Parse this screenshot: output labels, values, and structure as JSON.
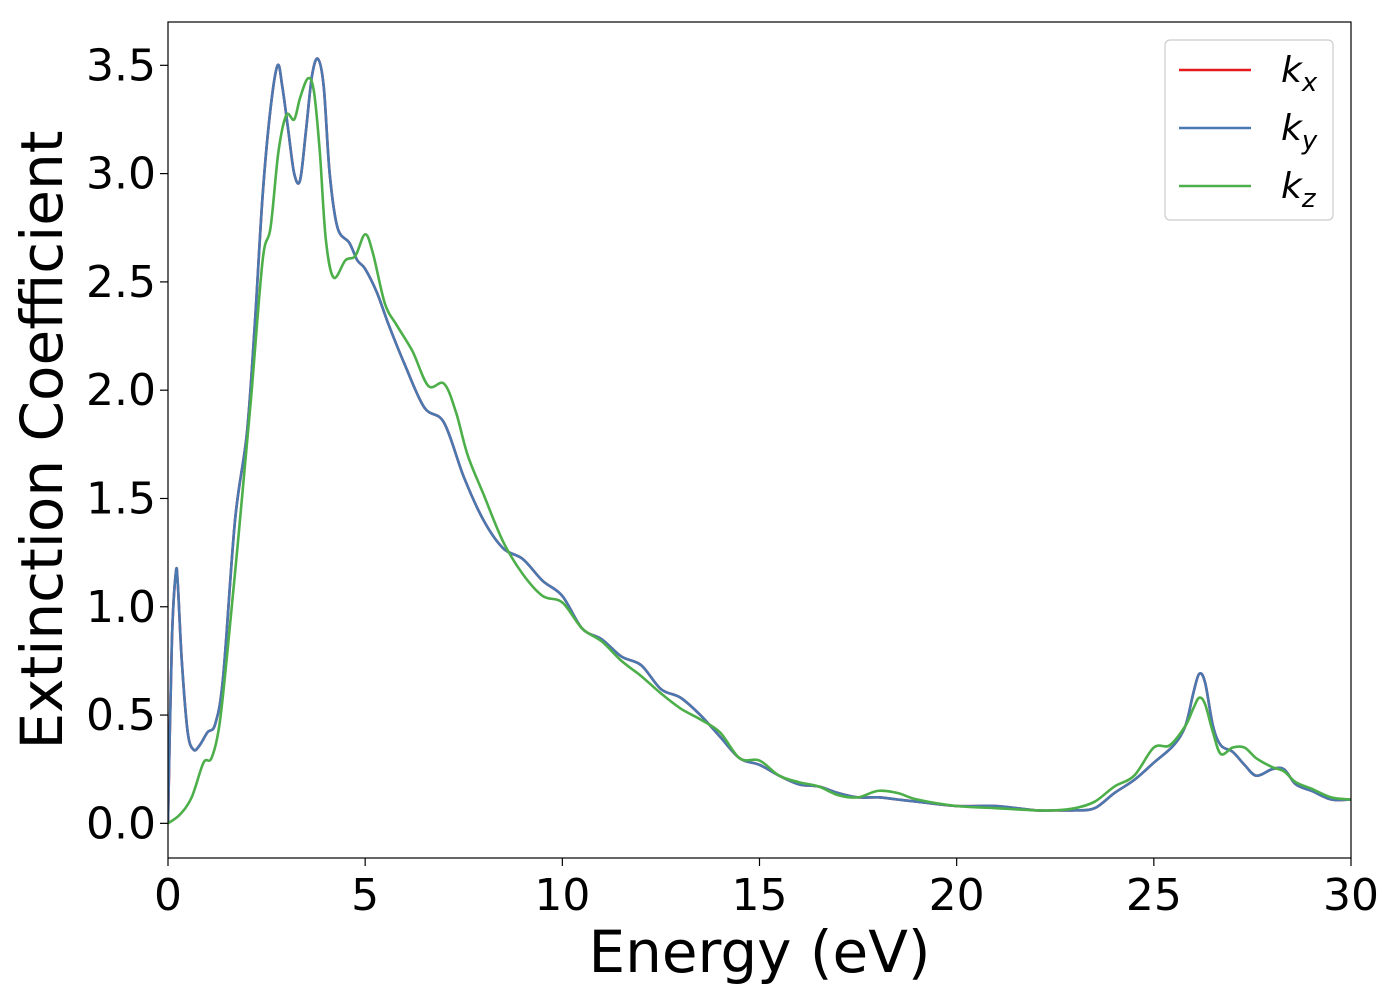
{
  "chart_data": {
    "type": "line",
    "title": "",
    "xlabel": "Energy (eV)",
    "ylabel": "Extinction Coefficient",
    "xlim": [
      0,
      30
    ],
    "ylim": [
      -0.16,
      3.7
    ],
    "xticks": [
      0,
      5,
      10,
      15,
      20,
      25,
      30
    ],
    "xtick_labels": [
      "0",
      "5",
      "10",
      "15",
      "20",
      "25",
      "30"
    ],
    "yticks": [
      0.0,
      0.5,
      1.0,
      1.5,
      2.0,
      2.5,
      3.0,
      3.5
    ],
    "ytick_labels": [
      "0.0",
      "0.5",
      "1.0",
      "1.5",
      "2.0",
      "2.5",
      "3.0",
      "3.5"
    ],
    "grid": false,
    "legend_position": "top-right",
    "series": [
      {
        "name": "k",
        "subscript": "x",
        "color": "#e41a1c",
        "x": [
          0,
          0.1,
          0.2,
          0.25,
          0.35,
          0.5,
          0.65,
          0.8,
          1.0,
          1.2,
          1.4,
          1.7,
          2.0,
          2.2,
          2.4,
          2.6,
          2.78,
          2.9,
          3.05,
          3.2,
          3.35,
          3.5,
          3.65,
          3.8,
          3.95,
          4.1,
          4.3,
          4.6,
          4.8,
          5.0,
          5.3,
          5.6,
          6.0,
          6.5,
          7.0,
          7.5,
          8.0,
          8.5,
          9.0,
          9.5,
          10.0,
          10.5,
          11.0,
          11.5,
          12.0,
          12.5,
          13.0,
          13.5,
          14.0,
          14.5,
          15.0,
          15.5,
          16.0,
          16.5,
          17.0,
          17.5,
          18.0,
          18.5,
          19.0,
          20.0,
          21.0,
          22.0,
          22.5,
          23.0,
          23.5,
          24.0,
          24.5,
          25.0,
          25.5,
          25.8,
          26.0,
          26.15,
          26.3,
          26.5,
          26.7,
          27.0,
          27.3,
          27.6,
          28.0,
          28.3,
          28.6,
          29.0,
          29.5,
          30.0
        ],
        "y": [
          0.0,
          0.85,
          1.16,
          1.1,
          0.75,
          0.42,
          0.34,
          0.36,
          0.42,
          0.46,
          0.68,
          1.4,
          1.8,
          2.3,
          2.9,
          3.3,
          3.5,
          3.4,
          3.2,
          3.0,
          2.97,
          3.2,
          3.45,
          3.53,
          3.4,
          3.0,
          2.75,
          2.68,
          2.6,
          2.56,
          2.45,
          2.3,
          2.12,
          1.92,
          1.85,
          1.6,
          1.4,
          1.27,
          1.22,
          1.12,
          1.05,
          0.9,
          0.85,
          0.77,
          0.73,
          0.62,
          0.58,
          0.5,
          0.4,
          0.3,
          0.27,
          0.22,
          0.18,
          0.17,
          0.14,
          0.12,
          0.12,
          0.11,
          0.1,
          0.08,
          0.08,
          0.06,
          0.06,
          0.06,
          0.07,
          0.14,
          0.2,
          0.28,
          0.36,
          0.45,
          0.6,
          0.69,
          0.65,
          0.45,
          0.36,
          0.33,
          0.27,
          0.22,
          0.25,
          0.25,
          0.18,
          0.15,
          0.11,
          0.11
        ]
      },
      {
        "name": "k",
        "subscript": "y",
        "color": "#4a78b0",
        "x": [
          0,
          0.1,
          0.2,
          0.25,
          0.35,
          0.5,
          0.65,
          0.8,
          1.0,
          1.2,
          1.4,
          1.7,
          2.0,
          2.2,
          2.4,
          2.6,
          2.78,
          2.9,
          3.05,
          3.2,
          3.35,
          3.5,
          3.65,
          3.8,
          3.95,
          4.1,
          4.3,
          4.6,
          4.8,
          5.0,
          5.3,
          5.6,
          6.0,
          6.5,
          7.0,
          7.5,
          8.0,
          8.5,
          9.0,
          9.5,
          10.0,
          10.5,
          11.0,
          11.5,
          12.0,
          12.5,
          13.0,
          13.5,
          14.0,
          14.5,
          15.0,
          15.5,
          16.0,
          16.5,
          17.0,
          17.5,
          18.0,
          18.5,
          19.0,
          20.0,
          21.0,
          22.0,
          22.5,
          23.0,
          23.5,
          24.0,
          24.5,
          25.0,
          25.5,
          25.8,
          26.0,
          26.15,
          26.3,
          26.5,
          26.7,
          27.0,
          27.3,
          27.6,
          28.0,
          28.3,
          28.6,
          29.0,
          29.5,
          30.0
        ],
        "y": [
          0.0,
          0.85,
          1.16,
          1.1,
          0.75,
          0.42,
          0.34,
          0.36,
          0.42,
          0.46,
          0.68,
          1.4,
          1.8,
          2.3,
          2.9,
          3.3,
          3.5,
          3.4,
          3.2,
          3.0,
          2.97,
          3.2,
          3.45,
          3.53,
          3.4,
          3.0,
          2.75,
          2.68,
          2.6,
          2.56,
          2.45,
          2.3,
          2.12,
          1.92,
          1.85,
          1.6,
          1.4,
          1.27,
          1.22,
          1.12,
          1.05,
          0.9,
          0.85,
          0.77,
          0.73,
          0.62,
          0.58,
          0.5,
          0.4,
          0.3,
          0.27,
          0.22,
          0.18,
          0.17,
          0.14,
          0.12,
          0.12,
          0.11,
          0.1,
          0.08,
          0.08,
          0.06,
          0.06,
          0.06,
          0.07,
          0.14,
          0.2,
          0.28,
          0.36,
          0.45,
          0.6,
          0.69,
          0.65,
          0.45,
          0.36,
          0.33,
          0.27,
          0.22,
          0.25,
          0.25,
          0.18,
          0.15,
          0.11,
          0.11
        ]
      },
      {
        "name": "k",
        "subscript": "z",
        "color": "#4daf4a",
        "x": [
          0,
          0.3,
          0.6,
          0.9,
          1.1,
          1.3,
          1.5,
          1.8,
          2.1,
          2.4,
          2.6,
          2.8,
          3.0,
          3.2,
          3.35,
          3.55,
          3.7,
          3.85,
          4.0,
          4.2,
          4.5,
          4.75,
          5.0,
          5.2,
          5.5,
          5.8,
          6.2,
          6.6,
          7.0,
          7.3,
          7.6,
          8.0,
          8.5,
          9.0,
          9.5,
          10.0,
          10.5,
          11.0,
          11.5,
          12.0,
          12.5,
          13.0,
          13.5,
          14.0,
          14.5,
          15.0,
          15.5,
          16.0,
          16.5,
          17.0,
          17.5,
          18.0,
          18.5,
          19.0,
          20.0,
          21.0,
          22.0,
          22.5,
          23.0,
          23.5,
          24.0,
          24.5,
          25.0,
          25.4,
          25.8,
          26.0,
          26.15,
          26.3,
          26.5,
          26.7,
          27.0,
          27.3,
          27.6,
          28.0,
          28.3,
          28.6,
          29.0,
          29.5,
          30.0
        ],
        "y": [
          0.0,
          0.04,
          0.12,
          0.28,
          0.3,
          0.45,
          0.78,
          1.35,
          1.95,
          2.6,
          2.75,
          3.1,
          3.27,
          3.25,
          3.35,
          3.44,
          3.38,
          3.1,
          2.7,
          2.52,
          2.6,
          2.62,
          2.72,
          2.63,
          2.4,
          2.3,
          2.18,
          2.02,
          2.03,
          1.9,
          1.7,
          1.52,
          1.3,
          1.15,
          1.05,
          1.02,
          0.9,
          0.84,
          0.75,
          0.68,
          0.6,
          0.53,
          0.48,
          0.42,
          0.3,
          0.29,
          0.22,
          0.19,
          0.17,
          0.13,
          0.12,
          0.15,
          0.14,
          0.11,
          0.08,
          0.07,
          0.06,
          0.06,
          0.07,
          0.1,
          0.17,
          0.22,
          0.35,
          0.36,
          0.45,
          0.53,
          0.58,
          0.55,
          0.42,
          0.32,
          0.35,
          0.35,
          0.3,
          0.26,
          0.24,
          0.19,
          0.16,
          0.12,
          0.11
        ]
      }
    ]
  }
}
